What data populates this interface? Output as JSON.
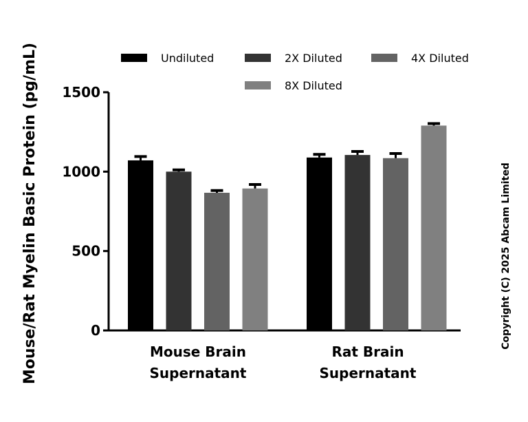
{
  "chart_data": {
    "type": "bar",
    "title": "",
    "xlabel": "",
    "ylabel": "Mouse/Rat Myelin Basic Protein (pg/mL)",
    "ylim": [
      0,
      1500
    ],
    "yticks": [
      "0",
      "500",
      "1000",
      "1500"
    ],
    "ytick_values": [
      0,
      500,
      1000,
      1500
    ],
    "categories": [
      [
        "Mouse Brain",
        "Supernatant"
      ],
      [
        "Rat Brain",
        "Supernatant"
      ]
    ],
    "legend_position": "top",
    "series": [
      {
        "name": "Undiluted",
        "color": "#000000",
        "values": [
          1071,
          1089
        ],
        "errors": [
          24,
          20
        ]
      },
      {
        "name": "2X Diluted",
        "color": "#333333",
        "values": [
          1000,
          1105
        ],
        "errors": [
          11,
          22
        ]
      },
      {
        "name": "4X Diluted",
        "color": "#636363",
        "values": [
          867,
          1085
        ],
        "errors": [
          14,
          29
        ]
      },
      {
        "name": "8X Diluted",
        "color": "#808080",
        "values": [
          894,
          1290
        ],
        "errors": [
          25,
          13
        ]
      }
    ],
    "grid": false
  },
  "copyright": "Copyright (C) 2025 Abcam Limited"
}
